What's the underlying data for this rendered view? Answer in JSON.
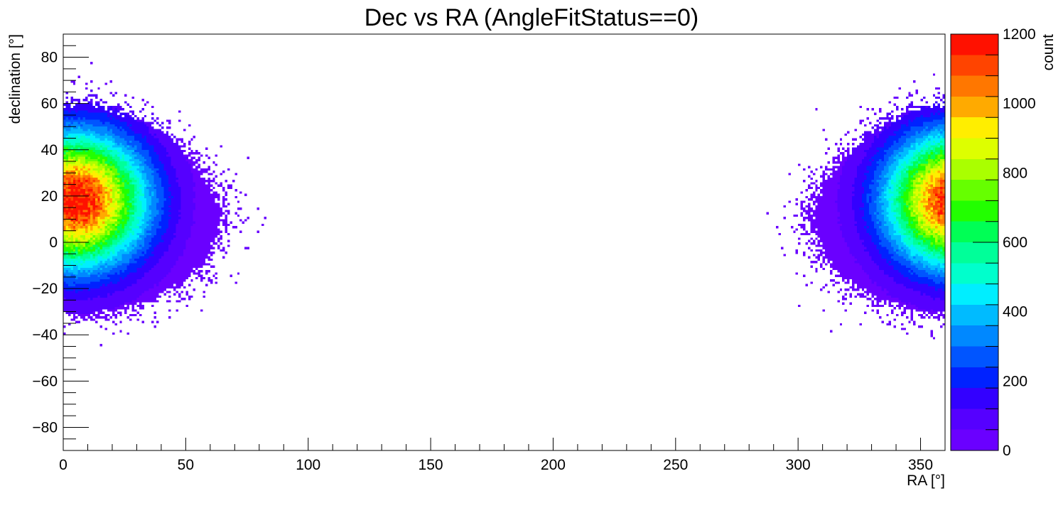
{
  "chart_data": {
    "type": "heatmap",
    "title": "Dec vs RA (AngleFitStatus==0)",
    "xlabel": "RA [°]",
    "ylabel": "declination [°]",
    "zlabel": "count",
    "xlim": [
      0,
      360
    ],
    "ylim": [
      -90,
      90
    ],
    "zlim": [
      0,
      1200
    ],
    "x_ticks": [
      0,
      50,
      100,
      150,
      200,
      250,
      300,
      350
    ],
    "x_tick_labels": [
      "0",
      "50",
      "100",
      "150",
      "200",
      "250",
      "300",
      "350"
    ],
    "y_ticks": [
      -80,
      -60,
      -40,
      -20,
      0,
      20,
      40,
      60,
      80
    ],
    "y_tick_labels": [
      "−80",
      "−60",
      "−40",
      "−20",
      "0",
      "20",
      "40",
      "60",
      "80"
    ],
    "z_ticks": [
      0,
      200,
      400,
      600,
      800,
      1000,
      1200
    ],
    "z_tick_labels": [
      "0",
      "200",
      "400",
      "600",
      "800",
      "1000",
      "1200"
    ],
    "bins": {
      "x": 360,
      "y": 180
    },
    "hotspot": {
      "ra": 5,
      "dec": 18,
      "peak_count": 1200,
      "wraps_at": 360
    },
    "palette": [
      "#6a00ff",
      "#5500ff",
      "#3300ff",
      "#0022ff",
      "#0055ff",
      "#0088ff",
      "#00bbff",
      "#00eeff",
      "#00ffcc",
      "#00ff99",
      "#00ff55",
      "#22ff00",
      "#66ff00",
      "#aaff00",
      "#ddff00",
      "#ffee00",
      "#ffaa00",
      "#ff7700",
      "#ff4400",
      "#ff1100"
    ],
    "palette_levels": 20,
    "colors": {
      "minimum_bin": "#6a00ff",
      "maximum_bin": "#ff1100",
      "background": "#ffffff"
    }
  }
}
